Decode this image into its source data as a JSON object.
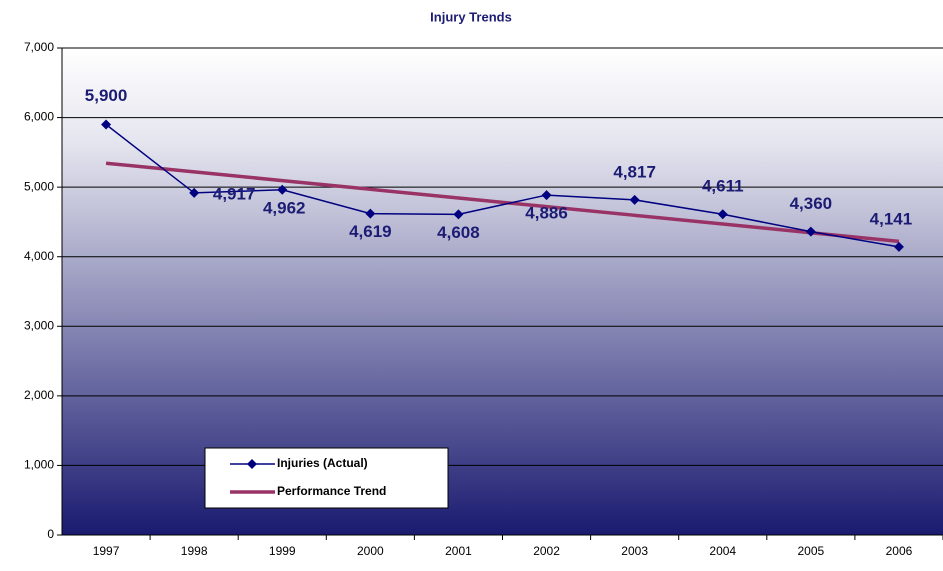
{
  "chart_data": {
    "type": "line",
    "title": "Injury Trends",
    "categories": [
      "1997",
      "1998",
      "1999",
      "2000",
      "2001",
      "2002",
      "2003",
      "2004",
      "2005",
      "2006"
    ],
    "series": [
      {
        "name": "Injuries (Actual)",
        "color": "#000080",
        "marker": "diamond",
        "values": [
          5900,
          4917,
          4962,
          4619,
          4608,
          4886,
          4817,
          4611,
          4360,
          4141
        ],
        "value_labels": [
          "5,900",
          "4,917",
          "4,962",
          "4,619",
          "4,608",
          "4,886",
          "4,817",
          "4,611",
          "4,360",
          "4,141"
        ]
      },
      {
        "name": "Performance Trend",
        "color": "#993366",
        "values": [
          5344,
          5219,
          5094,
          4969,
          4844,
          4720,
          4595,
          4470,
          4345,
          4220
        ]
      }
    ],
    "ylim": [
      0,
      7000
    ],
    "yticks": [
      0,
      {
        "value": 1000,
        "label": "1,000"
      },
      {
        "value": 2000,
        "label": "2,000"
      },
      {
        "value": 3000,
        "label": "3,000"
      },
      {
        "value": 4000,
        "label": "4,000"
      },
      {
        "value": 5000,
        "label": "5,000"
      },
      {
        "value": 6000,
        "label": "6,000"
      },
      {
        "value": 7000,
        "label": "7,000"
      }
    ],
    "grid": true,
    "legend": "lower left"
  }
}
